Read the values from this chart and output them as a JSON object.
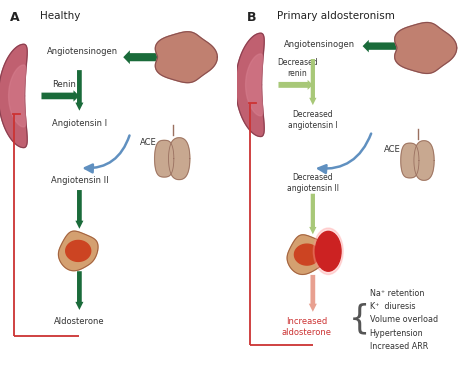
{
  "panel_A_bg": "#f2ddd4",
  "panel_B_bg": "#d4dff0",
  "dark_green": "#1a6b3a",
  "light_green": "#a8c878",
  "blue_arrow": "#6090c0",
  "red_line": "#cc3333",
  "red_text": "#cc3333",
  "salmon_arrow": "#e8a090",
  "dark_text": "#333333",
  "kidney_color": "#c06070",
  "kidney_edge": "#8a4050",
  "liver_color": "#c08070",
  "liver_edge": "#8a5050",
  "lung_color": "#c8a090",
  "lung_edge": "#8a6055",
  "adrenal_outer": "#d4a070",
  "adrenal_inner": "#cc4422",
  "adrenal_edge": "#a06040",
  "tumor_color": "#cc2222",
  "effects": [
    "Na⁺ retention",
    "K⁺  diuresis",
    "Volume overload",
    "Hypertension",
    "Increased ARR"
  ]
}
